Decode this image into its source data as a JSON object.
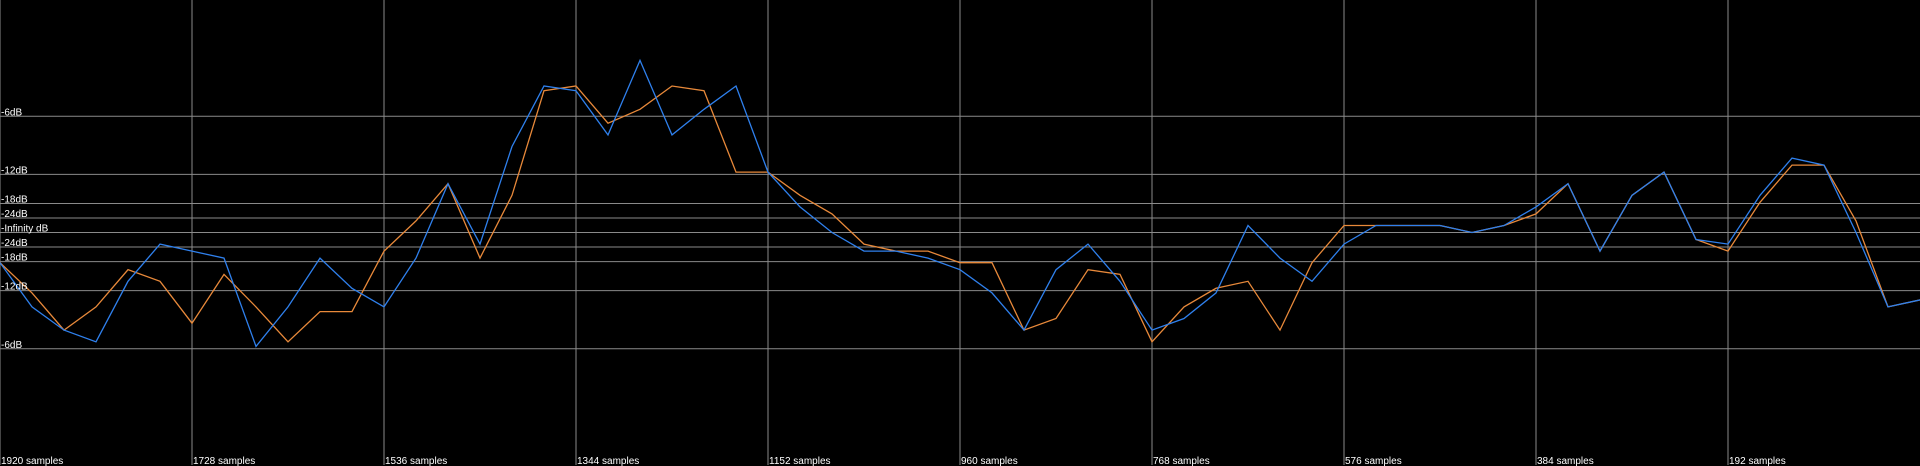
{
  "chart_data": {
    "type": "line",
    "xlim": [
      1920,
      0
    ],
    "ylim": [
      -1,
      1
    ],
    "xticks": [
      {
        "value": 1920,
        "label": "1920 samples"
      },
      {
        "value": 1728,
        "label": "1728 samples"
      },
      {
        "value": 1536,
        "label": "1536 samples"
      },
      {
        "value": 1344,
        "label": "1344 samples"
      },
      {
        "value": 1152,
        "label": "1152 samples"
      },
      {
        "value": 960,
        "label": "960 samples"
      },
      {
        "value": 768,
        "label": "768 samples"
      },
      {
        "value": 576,
        "label": "576 samples"
      },
      {
        "value": 384,
        "label": "384 samples"
      },
      {
        "value": 192,
        "label": "192 samples"
      }
    ],
    "yticks": [
      {
        "value": 0.5,
        "label": "-6dB"
      },
      {
        "value": 0.25,
        "label": "-12dB"
      },
      {
        "value": 0.125,
        "label": "-18dB"
      },
      {
        "value": 0.0625,
        "label": "-24dB"
      },
      {
        "value": 0,
        "label": "-Infinity dB"
      },
      {
        "value": -0.0625,
        "label": "-24dB"
      },
      {
        "value": -0.125,
        "label": "-18dB"
      },
      {
        "value": -0.25,
        "label": "-12dB"
      },
      {
        "value": -0.5,
        "label": "-6dB"
      }
    ],
    "grid": true,
    "x": [
      1920,
      1888,
      1856,
      1824,
      1792,
      1760,
      1728,
      1696,
      1664,
      1632,
      1600,
      1568,
      1536,
      1504,
      1472,
      1440,
      1408,
      1376,
      1344,
      1312,
      1280,
      1248,
      1216,
      1184,
      1152,
      1120,
      1088,
      1056,
      1024,
      992,
      960,
      928,
      896,
      864,
      832,
      800,
      768,
      736,
      704,
      672,
      640,
      608,
      576,
      544,
      512,
      480,
      448,
      416,
      384,
      352,
      320,
      288,
      256,
      224,
      192,
      160,
      128,
      96,
      64,
      32,
      0
    ],
    "series": [
      {
        "color": "#e8893a",
        "values": [
          -0.13,
          -0.26,
          -0.42,
          -0.32,
          -0.16,
          -0.21,
          -0.39,
          -0.18,
          -0.32,
          -0.47,
          -0.34,
          -0.34,
          -0.08,
          0.05,
          0.21,
          -0.11,
          0.16,
          0.61,
          0.63,
          0.47,
          0.53,
          0.63,
          0.61,
          0.26,
          0.26,
          0.16,
          0.08,
          -0.05,
          -0.08,
          -0.08,
          -0.13,
          -0.13,
          -0.42,
          -0.37,
          -0.16,
          -0.18,
          -0.47,
          -0.32,
          -0.24,
          -0.21,
          -0.42,
          -0.13,
          0.03,
          0.03,
          0.03,
          0.03,
          0,
          0.03,
          0.08,
          0.21,
          -0.08,
          0.16,
          0.26,
          -0.03,
          -0.08,
          0.13,
          0.29,
          0.29,
          0.05,
          -0.32,
          -0.29
        ]
      },
      {
        "color": "#2f80ed",
        "values": [
          -0.13,
          -0.32,
          -0.42,
          -0.47,
          -0.21,
          -0.05,
          -0.08,
          -0.11,
          -0.49,
          -0.32,
          -0.11,
          -0.24,
          -0.32,
          -0.11,
          0.21,
          -0.05,
          0.37,
          0.63,
          0.61,
          0.42,
          0.74,
          0.42,
          0.53,
          0.63,
          0.26,
          0.11,
          0,
          -0.08,
          -0.08,
          -0.11,
          -0.16,
          -0.26,
          -0.42,
          -0.16,
          -0.05,
          -0.21,
          -0.42,
          -0.37,
          -0.26,
          0.03,
          -0.11,
          -0.21,
          -0.05,
          0.03,
          0.03,
          0.03,
          0,
          0.03,
          0.11,
          0.21,
          -0.08,
          0.16,
          0.26,
          -0.03,
          -0.05,
          0.16,
          0.32,
          0.29,
          0,
          -0.32,
          -0.29
        ]
      }
    ]
  }
}
